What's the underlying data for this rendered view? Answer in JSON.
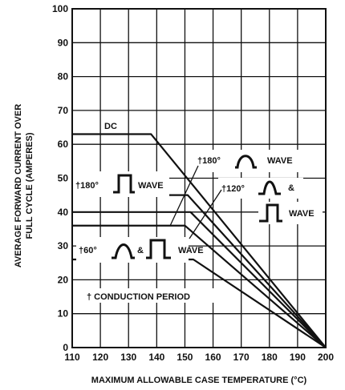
{
  "chart_data": {
    "type": "line",
    "title": "",
    "xlabel": "MAXIMUM ALLOWABLE CASE TEMPERATURE (°C)",
    "ylabel_line1": "AVERAGE FORWARD CURRENT OVER",
    "ylabel_line2": "FULL CYCLE (AMPERES)",
    "xlim": [
      110,
      200
    ],
    "ylim": [
      0,
      100
    ],
    "x_ticks": [
      110,
      120,
      130,
      140,
      150,
      160,
      170,
      180,
      190,
      200
    ],
    "y_ticks": [
      0,
      10,
      20,
      30,
      40,
      50,
      60,
      70,
      80,
      90,
      100
    ],
    "grid": true,
    "series": [
      {
        "name": "DC",
        "points": [
          [
            110,
            63
          ],
          [
            138,
            63
          ],
          [
            200,
            0
          ]
        ]
      },
      {
        "name": "†180° WAVE (square)",
        "points": [
          [
            110,
            45
          ],
          [
            151,
            45
          ],
          [
            200,
            0
          ]
        ]
      },
      {
        "name": "†180° WAVE (sine) / †120° & WAVE",
        "points": [
          [
            110,
            40
          ],
          [
            152,
            40
          ],
          [
            200,
            0
          ]
        ]
      },
      {
        "name": "†120° square WAVE",
        "points": [
          [
            110,
            36
          ],
          [
            150,
            36
          ],
          [
            200,
            0
          ]
        ]
      },
      {
        "name": "†60° & WAVE",
        "points": [
          [
            110,
            26
          ],
          [
            153,
            26
          ],
          [
            200,
            0
          ]
        ]
      }
    ],
    "annotations": {
      "dc": "DC",
      "wave_180_square": "†180°",
      "wave_180_square_suffix": "WAVE",
      "wave_180_sine": "†180°",
      "wave_180_sine_suffix": "WAVE",
      "wave_120": "†120°",
      "wave_120_amp": "&",
      "wave_120_suffix": "WAVE",
      "wave_60": "†60°",
      "wave_60_amp": "&",
      "wave_60_suffix": "WAVE",
      "conduction": "† CONDUCTION PERIOD"
    }
  }
}
